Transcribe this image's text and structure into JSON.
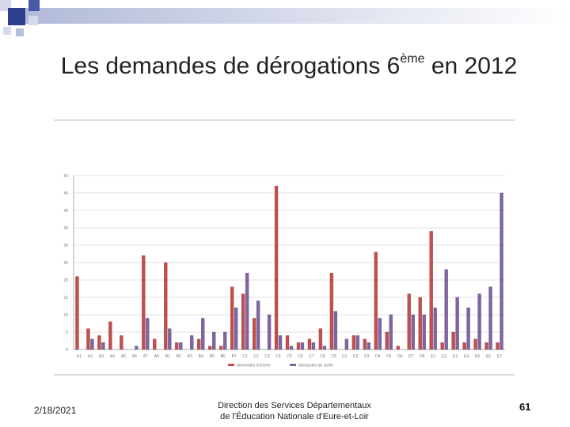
{
  "slide": {
    "title_main": "Les demandes de dérogations 6",
    "title_sup": "ème",
    "title_end": " en 2012"
  },
  "footer": {
    "date": "2/18/2021",
    "center_line1": "Direction des Services Départementaux",
    "center_line2": "de l'Éducation Nationale d'Eure-et-Loir",
    "page": "61"
  },
  "colors": {
    "series_a": "#c0504d",
    "series_b": "#8064a2",
    "grid": "#d9d9d9",
    "axis": "#999999"
  },
  "chart_data": {
    "type": "bar",
    "title": "",
    "xlabel": "",
    "ylabel": "",
    "ylim": [
      0,
      50
    ],
    "yticks": [
      "0",
      "5",
      "10",
      "15",
      "20",
      "25",
      "30",
      "35",
      "40",
      "45",
      "50"
    ],
    "grid": true,
    "legend_position": "bottom",
    "categories": [
      "A1",
      "A2",
      "A3",
      "A4",
      "A5",
      "A6",
      "A7",
      "A8",
      "B1",
      "B2",
      "B3",
      "B4",
      "B5",
      "B6",
      "B7",
      "C1",
      "C2",
      "C3",
      "C4",
      "C5",
      "C6",
      "C7",
      "C8",
      "C9",
      "D1",
      "D2",
      "D3",
      "D4",
      "D5",
      "D6",
      "D7",
      "D8",
      "E1",
      "E2",
      "E3",
      "E4",
      "E5",
      "E6",
      "E7"
    ],
    "series": [
      {
        "name": "demandes d'entrée",
        "values": [
          21,
          6,
          4,
          8,
          4,
          0,
          27,
          3,
          25,
          2,
          0,
          3,
          1,
          1,
          18,
          16,
          9,
          0,
          47,
          4,
          2,
          3,
          6,
          22,
          0,
          4,
          3,
          28,
          5,
          1,
          16,
          15,
          34,
          2,
          5,
          2,
          3,
          2,
          2
        ]
      },
      {
        "name": "demandes de sortie",
        "values": [
          0,
          3,
          2,
          0,
          0,
          1,
          9,
          0,
          6,
          2,
          4,
          9,
          5,
          5,
          12,
          22,
          14,
          10,
          4,
          1,
          2,
          2,
          1,
          11,
          3,
          4,
          2,
          9,
          10,
          0,
          10,
          10,
          12,
          23,
          15,
          12,
          16,
          18,
          45
        ]
      }
    ]
  }
}
